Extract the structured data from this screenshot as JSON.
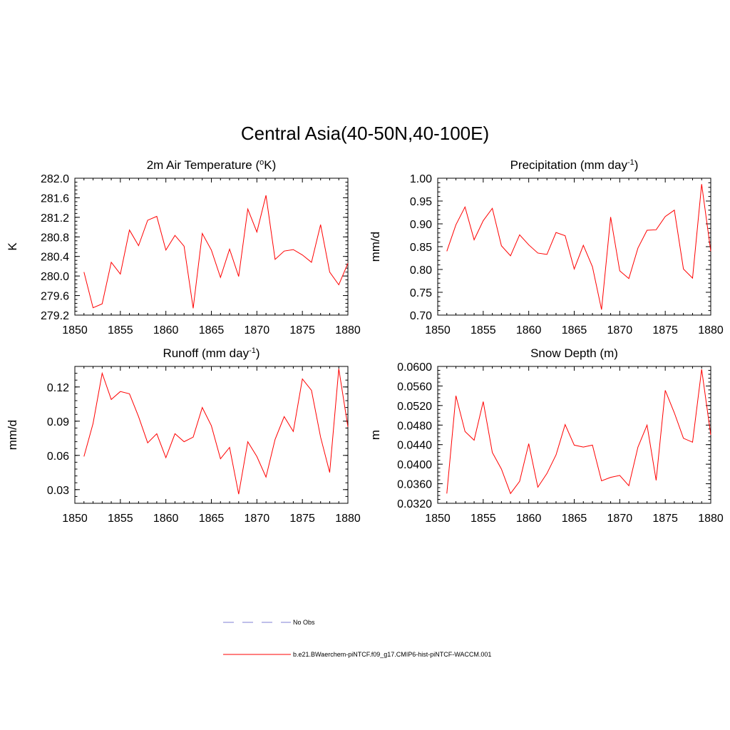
{
  "figure": {
    "title": "Central Asia(40-50N,40-100E)"
  },
  "colors": {
    "model_line": "#ff0000",
    "obs_line": "#9999dd",
    "axis": "#000000"
  },
  "legend": {
    "entries": [
      {
        "label": "No Obs",
        "style": "dashed",
        "color": "#9999dd"
      },
      {
        "label": "b.e21.BWaerchem-piNTCF.f09_g17.CMIP6-hist-piNTCF-WACCM.001",
        "style": "solid",
        "color": "#ff0000"
      }
    ]
  },
  "chart_data": [
    {
      "type": "line",
      "title_main": "2m Air Temperature (",
      "title_sup": "o",
      "title_rest": "K)",
      "xlabel": "",
      "ylabel": "K",
      "xlim": [
        1850,
        1880
      ],
      "ylim": [
        279.2,
        282.0
      ],
      "xticks": [
        1850,
        1855,
        1860,
        1865,
        1870,
        1875,
        1880
      ],
      "yticks": [
        279.2,
        279.6,
        280.0,
        280.4,
        280.8,
        281.2,
        281.6,
        282.0
      ],
      "ytick_labels": [
        "279.2",
        "279.6",
        "280.0",
        "280.4",
        "280.8",
        "281.2",
        "281.6",
        "282.0"
      ],
      "x": [
        1851,
        1852,
        1853,
        1854,
        1855,
        1856,
        1857,
        1858,
        1859,
        1860,
        1861,
        1862,
        1863,
        1864,
        1865,
        1866,
        1867,
        1868,
        1869,
        1870,
        1871,
        1872,
        1873,
        1874,
        1875,
        1876,
        1877,
        1878,
        1879,
        1880
      ],
      "series": [
        {
          "values": [
            280.08,
            279.35,
            279.43,
            280.28,
            280.04,
            280.94,
            280.62,
            281.14,
            281.22,
            280.53,
            280.83,
            280.61,
            279.34,
            280.87,
            280.53,
            279.97,
            280.55,
            279.99,
            281.37,
            280.9,
            281.65,
            280.34,
            280.51,
            280.54,
            280.43,
            280.28,
            281.05,
            280.08,
            279.82,
            280.26
          ]
        }
      ]
    },
    {
      "type": "line",
      "title_main": "Precipitation (mm day",
      "title_sup": "-1",
      "title_rest": ")",
      "xlabel": "",
      "ylabel": "mm/d",
      "xlim": [
        1850,
        1880
      ],
      "ylim": [
        0.7,
        1.0
      ],
      "xticks": [
        1850,
        1855,
        1860,
        1865,
        1870,
        1875,
        1880
      ],
      "yticks": [
        0.7,
        0.75,
        0.8,
        0.85,
        0.9,
        0.95,
        1.0
      ],
      "ytick_labels": [
        "0.70",
        "0.75",
        "0.80",
        "0.85",
        "0.90",
        "0.95",
        "1.00"
      ],
      "x": [
        1851,
        1852,
        1853,
        1854,
        1855,
        1856,
        1857,
        1858,
        1859,
        1860,
        1861,
        1862,
        1863,
        1864,
        1865,
        1866,
        1867,
        1868,
        1869,
        1870,
        1871,
        1872,
        1873,
        1874,
        1875,
        1876,
        1877,
        1878,
        1879,
        1880
      ],
      "series": [
        {
          "values": [
            0.84,
            0.898,
            0.937,
            0.865,
            0.907,
            0.934,
            0.852,
            0.83,
            0.876,
            0.854,
            0.836,
            0.833,
            0.881,
            0.874,
            0.801,
            0.853,
            0.806,
            0.712,
            0.915,
            0.797,
            0.78,
            0.847,
            0.886,
            0.887,
            0.916,
            0.93,
            0.801,
            0.781,
            0.987,
            0.84
          ]
        }
      ]
    },
    {
      "type": "line",
      "title_main": "Runoff (mm day",
      "title_sup": "-1",
      "title_rest": ")",
      "xlabel": "",
      "ylabel": "mm/d",
      "xlim": [
        1850,
        1880
      ],
      "ylim": [
        0.018,
        0.138
      ],
      "xticks": [
        1850,
        1855,
        1860,
        1865,
        1870,
        1875,
        1880
      ],
      "yticks": [
        0.03,
        0.06,
        0.09,
        0.12
      ],
      "ytick_labels": [
        "0.03",
        "0.06",
        "0.09",
        "0.12"
      ],
      "x": [
        1851,
        1852,
        1853,
        1854,
        1855,
        1856,
        1857,
        1858,
        1859,
        1860,
        1861,
        1862,
        1863,
        1864,
        1865,
        1866,
        1867,
        1868,
        1869,
        1870,
        1871,
        1872,
        1873,
        1874,
        1875,
        1876,
        1877,
        1878,
        1879,
        1880
      ],
      "series": [
        {
          "values": [
            0.059,
            0.088,
            0.132,
            0.109,
            0.116,
            0.114,
            0.094,
            0.071,
            0.079,
            0.058,
            0.079,
            0.072,
            0.076,
            0.102,
            0.086,
            0.057,
            0.067,
            0.026,
            0.072,
            0.059,
            0.041,
            0.074,
            0.094,
            0.081,
            0.127,
            0.117,
            0.076,
            0.045,
            0.136,
            0.085
          ]
        }
      ]
    },
    {
      "type": "line",
      "title_main": "Snow Depth (m)",
      "title_sup": "",
      "title_rest": "",
      "xlabel": "",
      "ylabel": "m",
      "xlim": [
        1850,
        1880
      ],
      "ylim": [
        0.032,
        0.06
      ],
      "xticks": [
        1850,
        1855,
        1860,
        1865,
        1870,
        1875,
        1880
      ],
      "yticks": [
        0.032,
        0.036,
        0.04,
        0.044,
        0.048,
        0.052,
        0.056,
        0.06
      ],
      "ytick_labels": [
        "0.0320",
        "0.0360",
        "0.0400",
        "0.0440",
        "0.0480",
        "0.0520",
        "0.0560",
        "0.0600"
      ],
      "x": [
        1851,
        1852,
        1853,
        1854,
        1855,
        1856,
        1857,
        1858,
        1859,
        1860,
        1861,
        1862,
        1863,
        1864,
        1865,
        1866,
        1867,
        1868,
        1869,
        1870,
        1871,
        1872,
        1873,
        1874,
        1875,
        1876,
        1877,
        1878,
        1879,
        1880
      ],
      "series": [
        {
          "values": [
            0.034,
            0.054,
            0.0467,
            0.0449,
            0.0528,
            0.0424,
            0.039,
            0.034,
            0.0365,
            0.0442,
            0.0353,
            0.0381,
            0.0419,
            0.0481,
            0.0439,
            0.0435,
            0.0439,
            0.0366,
            0.0373,
            0.0377,
            0.0356,
            0.0435,
            0.048,
            0.0367,
            0.0551,
            0.0505,
            0.0453,
            0.0445,
            0.0594,
            0.046
          ]
        }
      ]
    }
  ]
}
